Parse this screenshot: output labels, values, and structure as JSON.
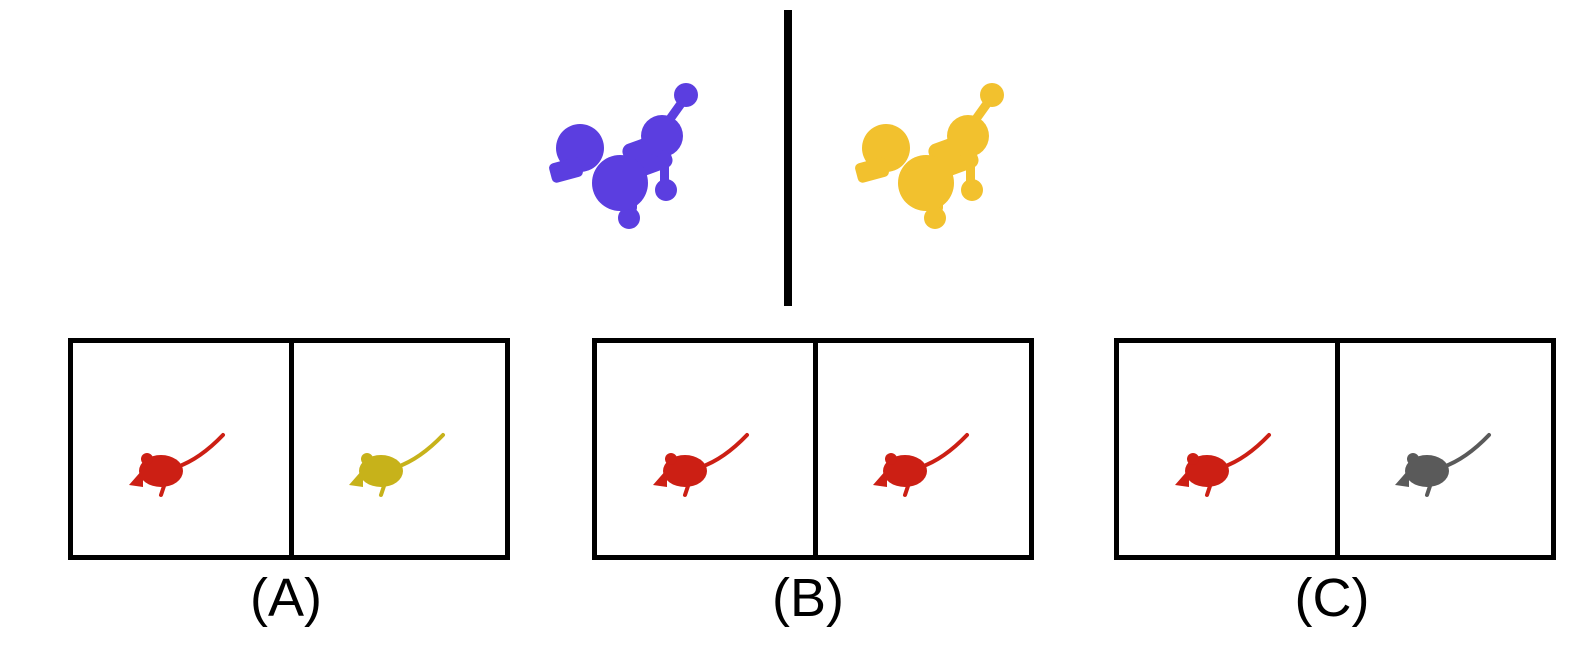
{
  "example_pair": {
    "left": {
      "icon": "poodle-icon",
      "color": "#5b3ee0"
    },
    "right": {
      "icon": "poodle-icon",
      "color": "#f2c12e"
    }
  },
  "options": [
    {
      "label": "(A)",
      "left": {
        "icon": "mouse-icon",
        "color": "#cc1f14"
      },
      "right": {
        "icon": "mouse-icon",
        "color": "#c7b21a"
      }
    },
    {
      "label": "(B)",
      "left": {
        "icon": "mouse-icon",
        "color": "#cc1f14"
      },
      "right": {
        "icon": "mouse-icon",
        "color": "#cc1f14"
      }
    },
    {
      "label": "(C)",
      "left": {
        "icon": "mouse-icon",
        "color": "#cc1f14"
      },
      "right": {
        "icon": "mouse-icon",
        "color": "#5a5a5a"
      }
    }
  ]
}
